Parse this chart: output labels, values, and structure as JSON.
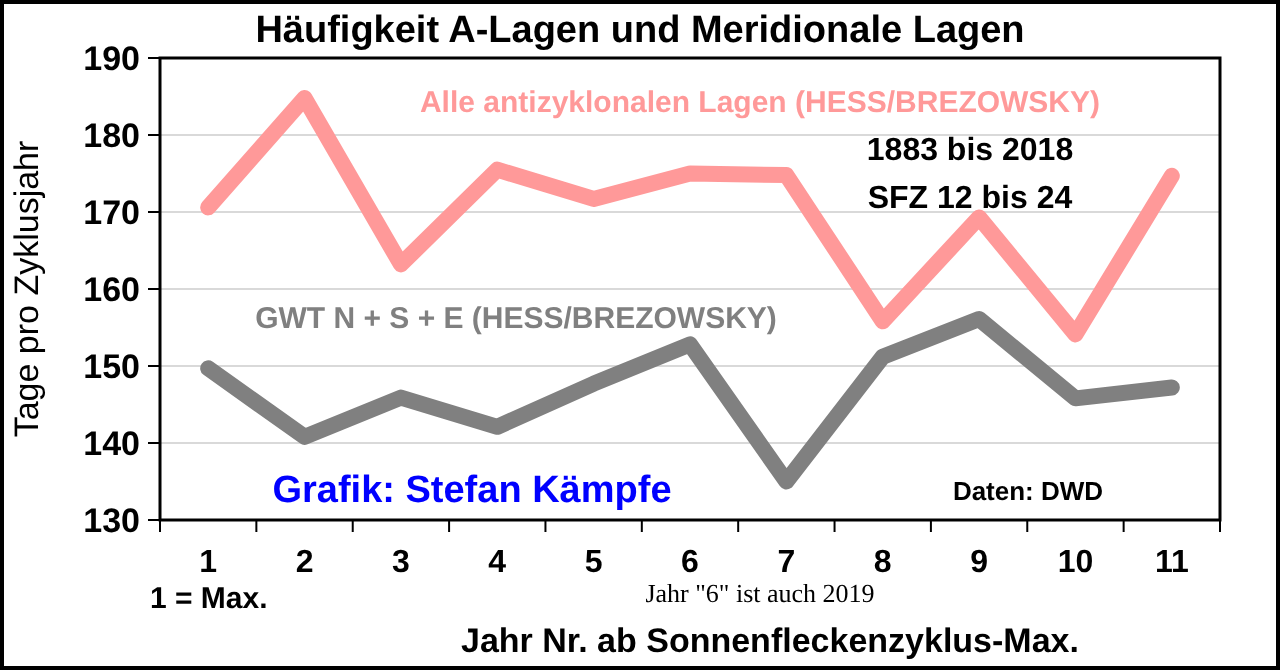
{
  "chart_data": {
    "type": "line",
    "title": "Häufigkeit A-Lagen und Meridionale Lagen",
    "xlabel": "Jahr Nr. ab Sonnenfleckenzyklus-Max.",
    "ylabel": "Tage pro Zyklusjahr",
    "categories": [
      "1",
      "2",
      "3",
      "4",
      "5",
      "6",
      "7",
      "8",
      "9",
      "10",
      "11"
    ],
    "series": [
      {
        "name": "Alle antizyklonalen Lagen (HESS/BREZOWSKY)",
        "color": "#ff9999",
        "values": [
          170.6,
          184.8,
          163.2,
          175.5,
          171.7,
          175,
          174.8,
          155.8,
          169.3,
          154.1,
          174.7
        ]
      },
      {
        "name": "GWT N + S + E (HESS/BREZOWSKY)",
        "color": "#808080",
        "values": [
          149.7,
          140.8,
          145.9,
          142.1,
          147.7,
          152.8,
          135,
          151.2,
          156.1,
          145.8,
          147.2
        ]
      }
    ],
    "ylim": [
      130,
      190
    ],
    "yticks": [
      130,
      140,
      150,
      160,
      170,
      180,
      190
    ],
    "grid": "y",
    "legend": false,
    "marker": "none",
    "line_style": "solid",
    "annotations": [
      "1883 bis 2018",
      "SFZ 12 bis 24",
      "Grafik: Stefan Kämpfe",
      "Daten: DWD",
      "1 = Max.",
      "Jahr \"6\"  ist auch 2019"
    ]
  }
}
